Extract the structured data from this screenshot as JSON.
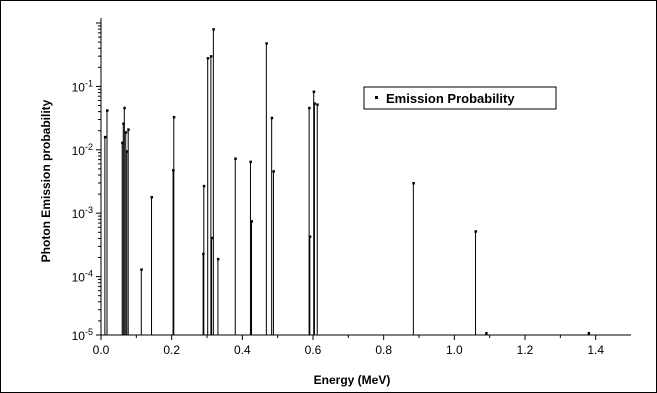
{
  "chart_data": {
    "type": "line",
    "title": "",
    "xlabel": "Energy (MeV)",
    "ylabel": "Photon Emission probability",
    "xlim": [
      0.0,
      1.5
    ],
    "ylim": [
      1e-05,
      1.0
    ],
    "y_scale": "log",
    "x_ticks": [
      "0.0",
      "0.2",
      "0.4",
      "0.6",
      "0.8",
      "1.0",
      "1.2",
      "1.4"
    ],
    "x_tick_values": [
      0.0,
      0.2,
      0.4,
      0.6,
      0.8,
      1.0,
      1.2,
      1.4
    ],
    "y_ticks": [
      {
        "value": 1e-05,
        "base": "10",
        "exp": "-5"
      },
      {
        "value": 0.0001,
        "base": "10",
        "exp": "-4"
      },
      {
        "value": 0.001,
        "base": "10",
        "exp": "-3"
      },
      {
        "value": 0.01,
        "base": "10",
        "exp": "-2"
      },
      {
        "value": 0.1,
        "base": "10",
        "exp": "-1"
      }
    ],
    "legend_position": "top-right",
    "grid": false,
    "series": [
      {
        "name": "Emission Probability",
        "x": [
          0.011,
          0.017,
          0.06,
          0.063,
          0.066,
          0.07,
          0.073,
          0.077,
          0.114,
          0.143,
          0.204,
          0.206,
          0.289,
          0.291,
          0.302,
          0.311,
          0.313,
          0.318,
          0.331,
          0.38,
          0.423,
          0.426,
          0.468,
          0.483,
          0.488,
          0.589,
          0.591,
          0.602,
          0.604,
          0.612,
          0.884,
          1.06,
          1.09,
          1.38
        ],
        "y": [
          0.016,
          0.042,
          0.013,
          0.026,
          0.046,
          0.019,
          0.0095,
          0.021,
          0.00013,
          0.0018,
          0.0048,
          0.033,
          0.00023,
          0.0027,
          0.28,
          0.3,
          0.00041,
          0.8,
          0.00019,
          0.0073,
          0.0065,
          0.00075,
          0.48,
          0.032,
          0.0046,
          0.046,
          0.00043,
          0.083,
          0.054,
          0.052,
          0.003,
          0.00052,
          1.1e-05,
          1.2e-05
        ]
      }
    ]
  }
}
